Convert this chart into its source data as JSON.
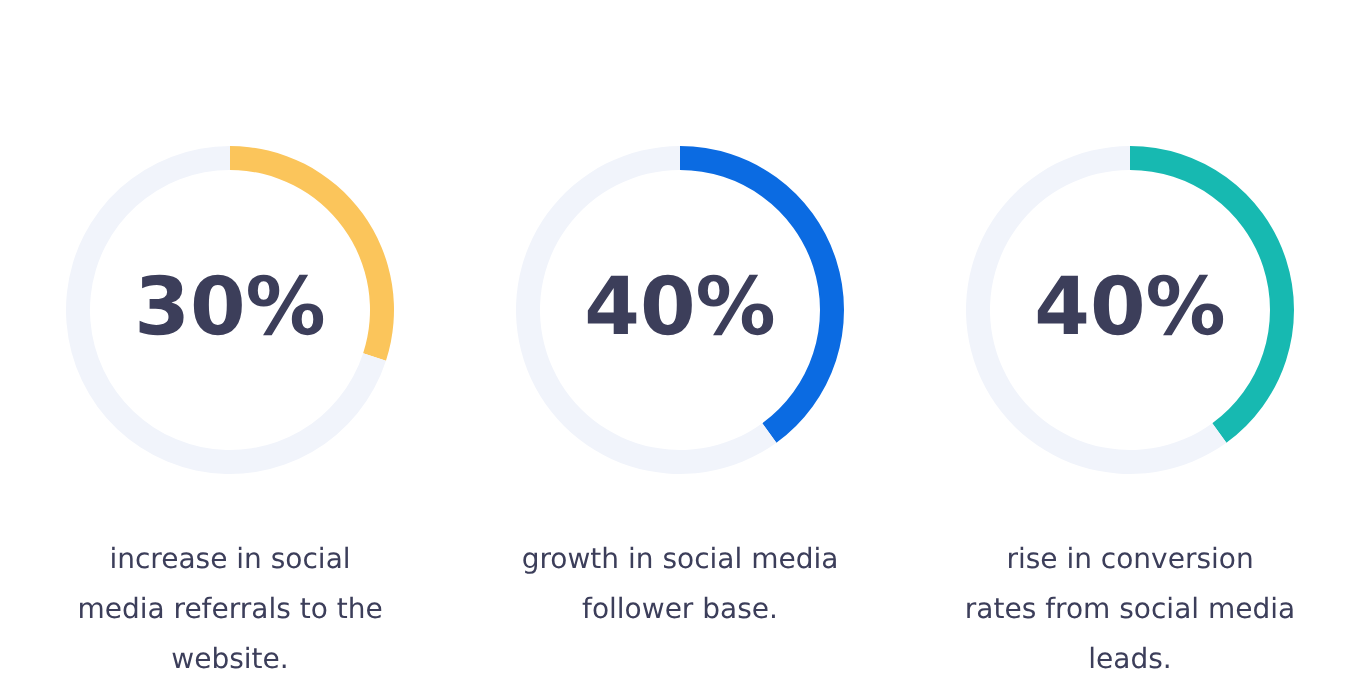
{
  "chart_data": [
    {
      "type": "donut",
      "categories": [
        null,
        null
      ],
      "values": [
        30,
        70
      ],
      "colors": [
        "#fbc55b",
        "#f1f4fb"
      ],
      "value_labels": [
        "30%",
        null
      ],
      "annotations": [
        "increase in social media referrals to the website."
      ]
    },
    {
      "type": "donut",
      "categories": [
        null,
        null
      ],
      "values": [
        40,
        60
      ],
      "colors": [
        "#0b6be2",
        "#f1f4fb"
      ],
      "value_labels": [
        "40%",
        null
      ],
      "annotations": [
        "growth in social media follower base."
      ]
    },
    {
      "type": "donut",
      "categories": [
        null,
        null
      ],
      "values": [
        40,
        60
      ],
      "colors": [
        "#17b9b1",
        "#f1f4fb"
      ],
      "value_labels": [
        "40%",
        null
      ],
      "annotations": [
        "rise in conversion rates from social media leads."
      ]
    }
  ]
}
